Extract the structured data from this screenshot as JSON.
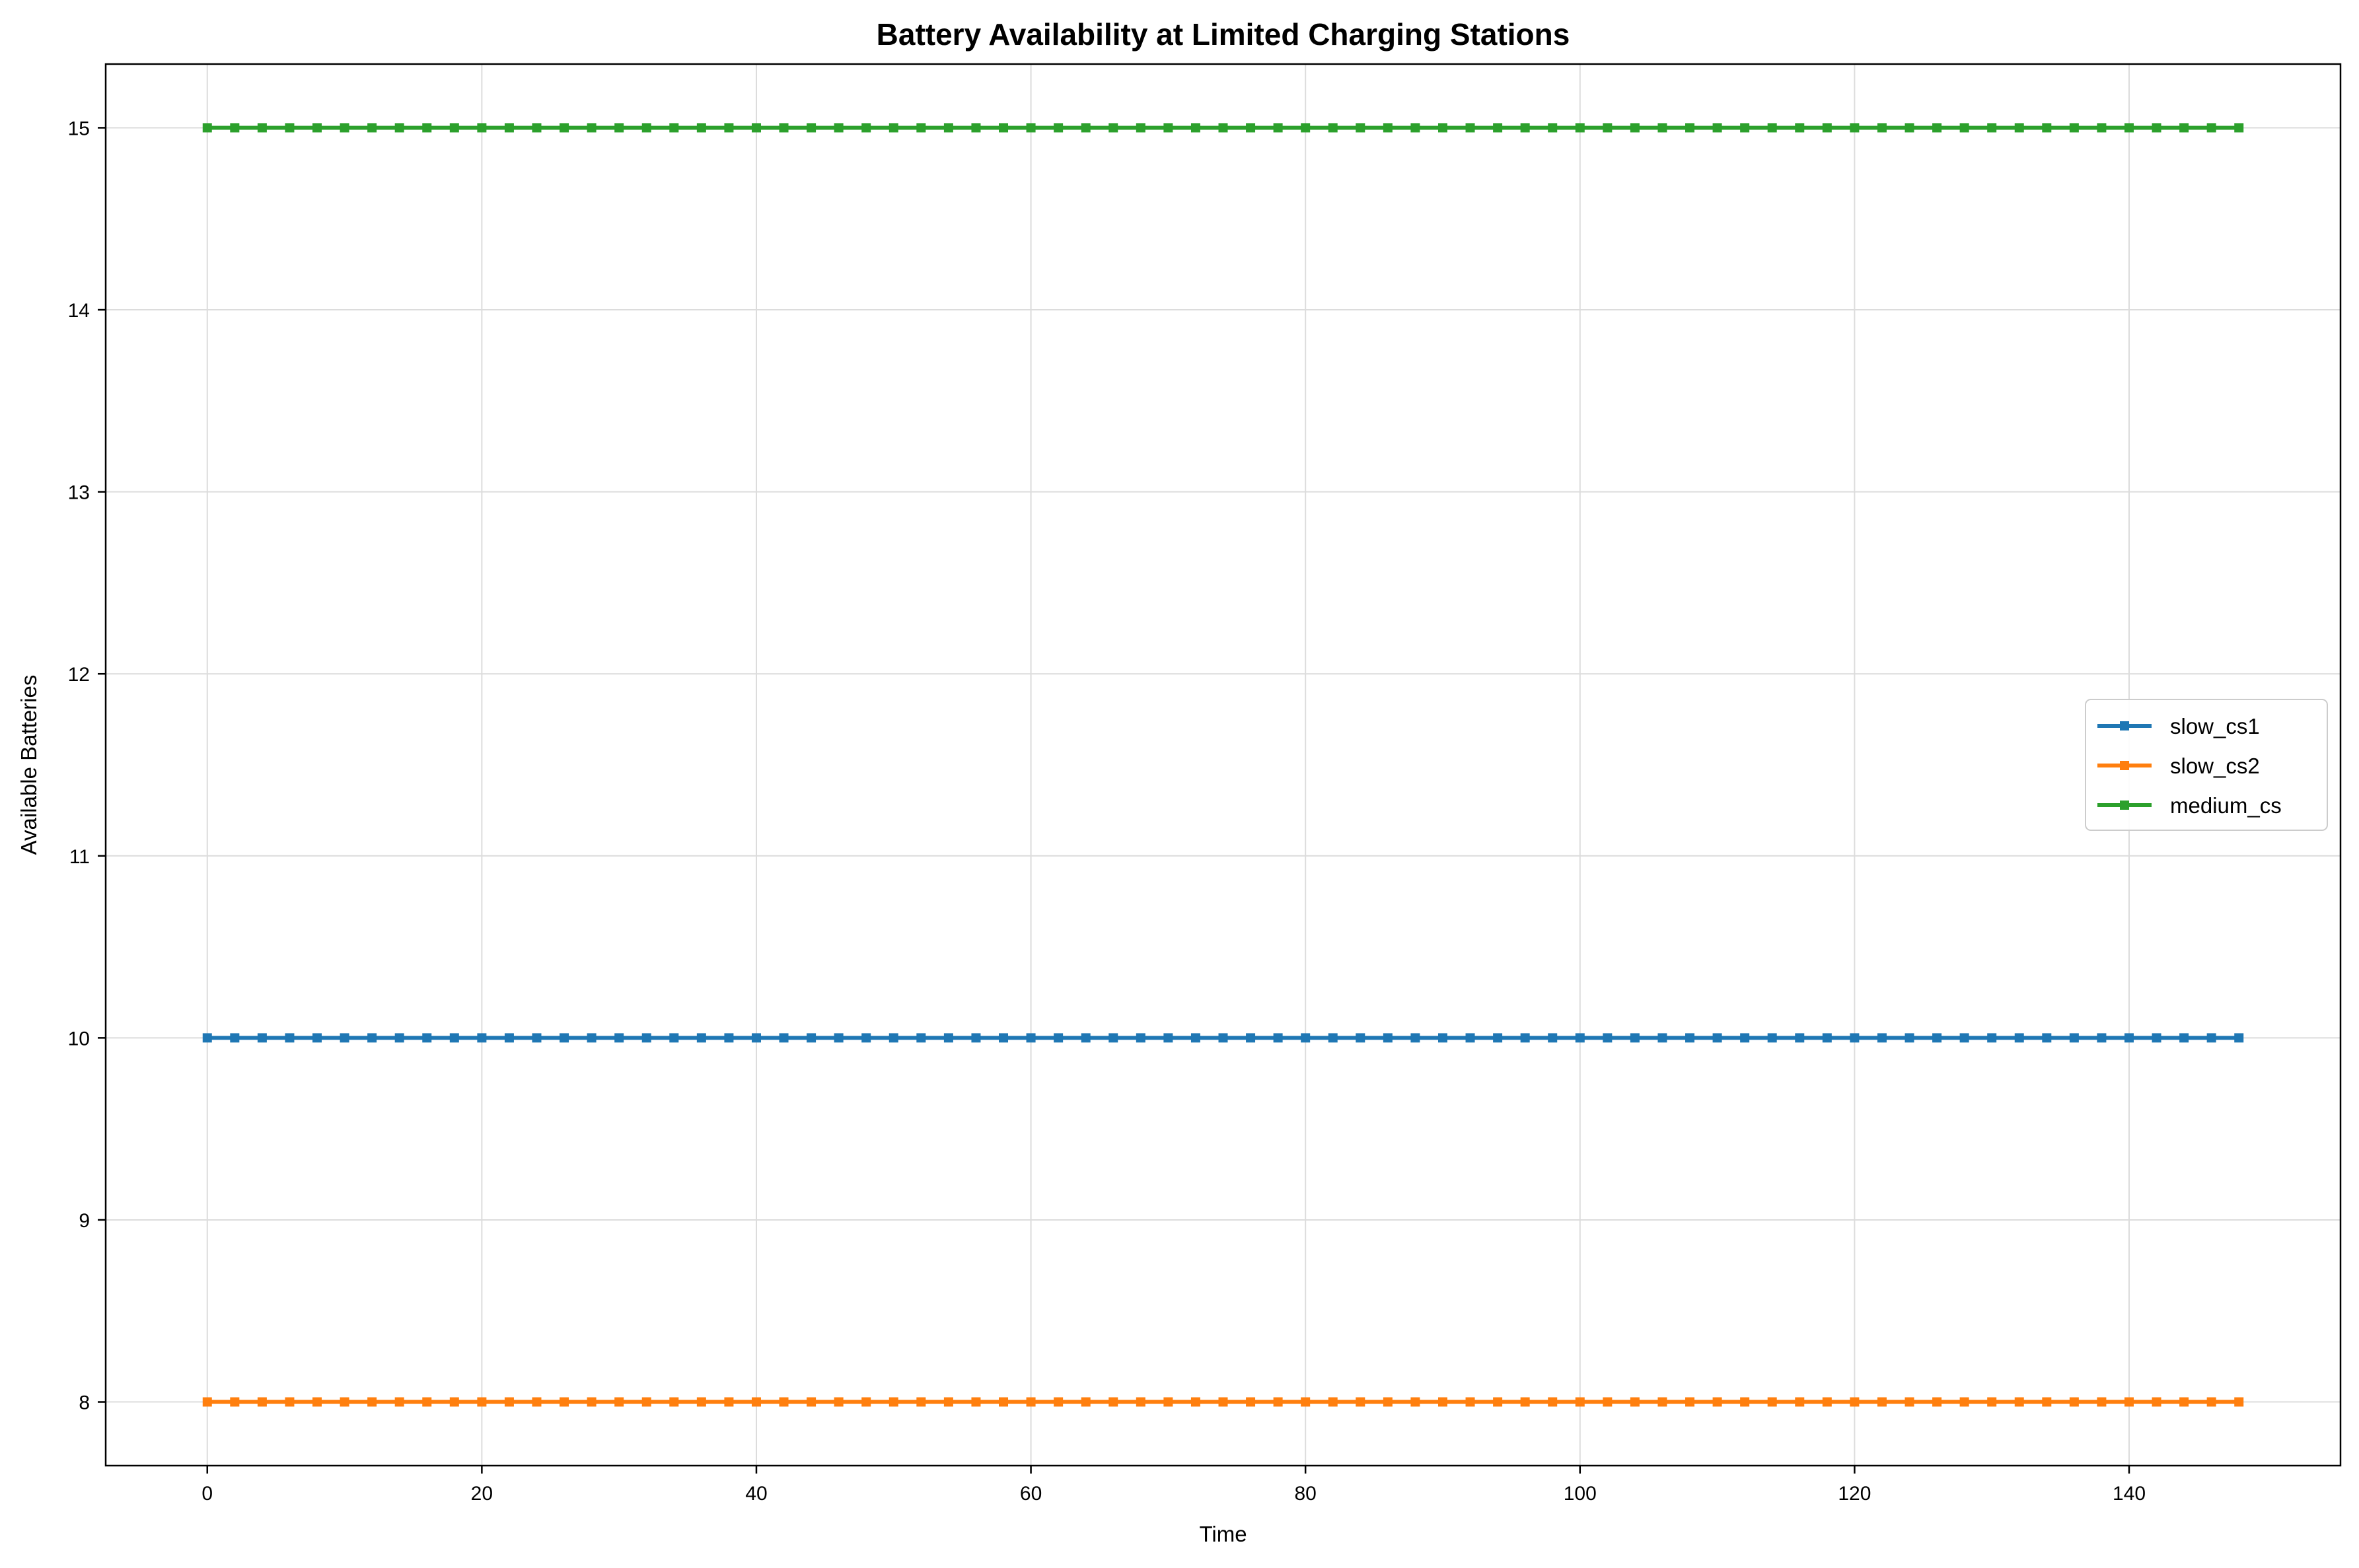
{
  "chart_data": {
    "type": "line",
    "title": "Battery Availability at Limited Charging Stations",
    "xlabel": "Time",
    "ylabel": "Available Batteries",
    "xlim": [
      -7.4,
      155.4
    ],
    "ylim": [
      7.65,
      15.35
    ],
    "xticks": [
      0,
      20,
      40,
      60,
      80,
      100,
      120,
      140
    ],
    "xtick_labels": [
      "0",
      "20",
      "40",
      "60",
      "80",
      "100",
      "120",
      "140"
    ],
    "yticks": [
      8,
      9,
      10,
      11,
      12,
      13,
      14,
      15
    ],
    "ytick_labels": [
      "8",
      "9",
      "10",
      "11",
      "12",
      "13",
      "14",
      "15"
    ],
    "grid": true,
    "legend_position": "center-right",
    "x": [
      0,
      2,
      4,
      6,
      8,
      10,
      12,
      14,
      16,
      18,
      20,
      22,
      24,
      26,
      28,
      30,
      32,
      34,
      36,
      38,
      40,
      42,
      44,
      46,
      48,
      50,
      52,
      54,
      56,
      58,
      60,
      62,
      64,
      66,
      68,
      70,
      72,
      74,
      76,
      78,
      80,
      82,
      84,
      86,
      88,
      90,
      92,
      94,
      96,
      98,
      100,
      102,
      104,
      106,
      108,
      110,
      112,
      114,
      116,
      118,
      120,
      122,
      124,
      126,
      128,
      130,
      132,
      134,
      136,
      138,
      140,
      142,
      144,
      146,
      148
    ],
    "series": [
      {
        "name": "slow_cs1",
        "color": "#1f77b4",
        "values": [
          10,
          10,
          10,
          10,
          10,
          10,
          10,
          10,
          10,
          10,
          10,
          10,
          10,
          10,
          10,
          10,
          10,
          10,
          10,
          10,
          10,
          10,
          10,
          10,
          10,
          10,
          10,
          10,
          10,
          10,
          10,
          10,
          10,
          10,
          10,
          10,
          10,
          10,
          10,
          10,
          10,
          10,
          10,
          10,
          10,
          10,
          10,
          10,
          10,
          10,
          10,
          10,
          10,
          10,
          10,
          10,
          10,
          10,
          10,
          10,
          10,
          10,
          10,
          10,
          10,
          10,
          10,
          10,
          10,
          10,
          10,
          10,
          10,
          10,
          10
        ]
      },
      {
        "name": "slow_cs2",
        "color": "#ff7f0e",
        "values": [
          8,
          8,
          8,
          8,
          8,
          8,
          8,
          8,
          8,
          8,
          8,
          8,
          8,
          8,
          8,
          8,
          8,
          8,
          8,
          8,
          8,
          8,
          8,
          8,
          8,
          8,
          8,
          8,
          8,
          8,
          8,
          8,
          8,
          8,
          8,
          8,
          8,
          8,
          8,
          8,
          8,
          8,
          8,
          8,
          8,
          8,
          8,
          8,
          8,
          8,
          8,
          8,
          8,
          8,
          8,
          8,
          8,
          8,
          8,
          8,
          8,
          8,
          8,
          8,
          8,
          8,
          8,
          8,
          8,
          8,
          8,
          8,
          8,
          8,
          8
        ]
      },
      {
        "name": "medium_cs",
        "color": "#2ca02c",
        "values": [
          15,
          15,
          15,
          15,
          15,
          15,
          15,
          15,
          15,
          15,
          15,
          15,
          15,
          15,
          15,
          15,
          15,
          15,
          15,
          15,
          15,
          15,
          15,
          15,
          15,
          15,
          15,
          15,
          15,
          15,
          15,
          15,
          15,
          15,
          15,
          15,
          15,
          15,
          15,
          15,
          15,
          15,
          15,
          15,
          15,
          15,
          15,
          15,
          15,
          15,
          15,
          15,
          15,
          15,
          15,
          15,
          15,
          15,
          15,
          15,
          15,
          15,
          15,
          15,
          15,
          15,
          15,
          15,
          15,
          15,
          15,
          15,
          15,
          15,
          15
        ]
      }
    ]
  }
}
